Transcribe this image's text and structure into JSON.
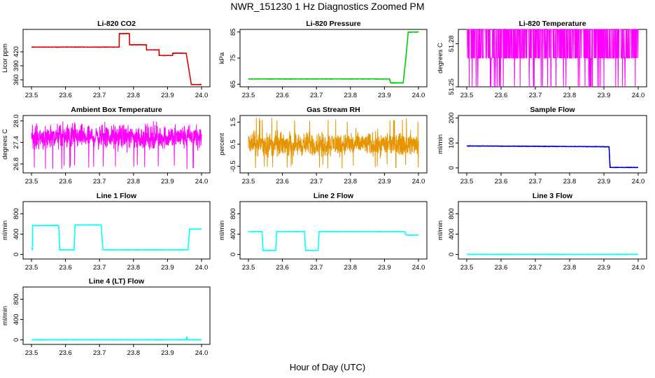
{
  "page": {
    "title": "NWR_151230  1 Hz Diagnostics Zoomed PM",
    "xlabel": "Hour of Day (UTC)"
  },
  "chart_data": [
    {
      "type": "line",
      "title": "Li-820 CO2",
      "ylabel": "Licor ppm",
      "xlim": [
        23.5,
        24.0
      ],
      "ylim": [
        345,
        468
      ],
      "xticks": [
        "23.5",
        "23.6",
        "23.7",
        "23.8",
        "23.9",
        "24.0"
      ],
      "yticks": [
        "360",
        "390",
        "420"
      ],
      "ytick_values": [
        360,
        390,
        420
      ],
      "color": "#dd0000",
      "mode": "steps",
      "x": [
        23.5,
        23.758,
        23.758,
        23.788,
        23.788,
        23.838,
        23.838,
        23.875,
        23.875,
        23.915,
        23.915,
        23.955,
        23.97,
        24.0
      ],
      "y": [
        430,
        430,
        459,
        459,
        435,
        435,
        424,
        424,
        412,
        412,
        417,
        417,
        350,
        350
      ]
    },
    {
      "type": "line",
      "title": "Li-820 Pressure",
      "ylabel": "kPa",
      "xlim": [
        23.5,
        24.0
      ],
      "ylim": [
        64,
        86
      ],
      "xticks": [
        "23.5",
        "23.6",
        "23.7",
        "23.8",
        "23.9",
        "24.0"
      ],
      "yticks": [
        "65",
        "75",
        "85"
      ],
      "ytick_values": [
        65,
        75,
        85
      ],
      "color": "#00cc00",
      "mode": "steps",
      "x": [
        23.5,
        23.915,
        23.918,
        23.955,
        23.963,
        23.97,
        23.97,
        24.0
      ],
      "y": [
        67,
        67,
        65.5,
        65.5,
        75,
        85,
        85,
        85
      ]
    },
    {
      "type": "line",
      "title": "Li-820 Temperature",
      "ylabel": "degrees C",
      "xlim": [
        23.5,
        24.0
      ],
      "ylim": [
        51.25,
        51.29
      ],
      "xticks": [
        "23.5",
        "23.6",
        "23.7",
        "23.8",
        "23.9",
        "24.0"
      ],
      "yticks": [
        "51.25",
        "51.28"
      ],
      "ytick_values": [
        51.25,
        51.28
      ],
      "color": "#ff00ff",
      "mode": "flicker",
      "low": 51.25,
      "high": 51.29,
      "base": 51.27
    },
    {
      "type": "line",
      "title": "Ambient Box Temperature",
      "ylabel": "degrees C",
      "xlim": [
        23.5,
        24.0
      ],
      "ylim": [
        26.55,
        28.15
      ],
      "xticks": [
        "23.5",
        "23.6",
        "23.7",
        "23.8",
        "23.9",
        "24.0"
      ],
      "yticks": [
        "26.8",
        "27.4",
        "28.0"
      ],
      "ytick_values": [
        26.8,
        27.4,
        28.0
      ],
      "color": "#ff00ff",
      "mode": "noise",
      "mean": 27.55,
      "spread": 0.25,
      "spike_lo": 26.65,
      "spike_hi": 28.0
    },
    {
      "type": "line",
      "title": "Gas Stream RH",
      "ylabel": "percent",
      "xlim": [
        23.5,
        24.0
      ],
      "ylim": [
        -0.8,
        1.8
      ],
      "xticks": [
        "23.5",
        "23.6",
        "23.7",
        "23.8",
        "23.9",
        "24.0"
      ],
      "yticks": [
        "-0.5",
        "0.5",
        "1.5"
      ],
      "ytick_values": [
        -0.5,
        0.5,
        1.5
      ],
      "color": "#e69500",
      "mode": "noise",
      "mean": 0.5,
      "spread": 0.4,
      "spike_lo": -0.6,
      "spike_hi": 1.7
    },
    {
      "type": "line",
      "title": "Sample Flow",
      "ylabel": "ml/min",
      "xlim": [
        23.5,
        24.0
      ],
      "ylim": [
        -20,
        210
      ],
      "xticks": [
        "23.5",
        "23.6",
        "23.7",
        "23.8",
        "23.9",
        "24.0"
      ],
      "yticks": [
        "0",
        "100",
        "200"
      ],
      "ytick_values": [
        0,
        100,
        200
      ],
      "color": "#0000cc",
      "mode": "steps",
      "x": [
        23.5,
        23.91,
        23.915,
        23.918,
        24.0
      ],
      "y": [
        88,
        85,
        85,
        2,
        2
      ]
    },
    {
      "type": "line",
      "title": "Line 1 Flow",
      "ylabel": "ml/min",
      "xlim": [
        23.5,
        24.0
      ],
      "ylim": [
        -90,
        1040
      ],
      "xticks": [
        "23.5",
        "23.6",
        "23.7",
        "23.8",
        "23.9",
        "24.0"
      ],
      "yticks": [
        "0",
        "400",
        "800"
      ],
      "ytick_values": [
        0,
        400,
        800
      ],
      "color": "#00ffff",
      "mode": "steps",
      "x": [
        23.5,
        23.503,
        23.503,
        23.58,
        23.583,
        23.625,
        23.628,
        23.705,
        23.71,
        23.96,
        23.965,
        24.0
      ],
      "y": [
        100,
        100,
        570,
        570,
        90,
        90,
        580,
        580,
        90,
        90,
        500,
        500
      ]
    },
    {
      "type": "line",
      "title": "Line 2 Flow",
      "ylabel": "ml/min",
      "xlim": [
        23.5,
        24.0
      ],
      "ylim": [
        -90,
        1040
      ],
      "xticks": [
        "23.5",
        "23.6",
        "23.7",
        "23.8",
        "23.9",
        "24.0"
      ],
      "yticks": [
        "0",
        "400",
        "800"
      ],
      "ytick_values": [
        0,
        400,
        800
      ],
      "color": "#00ffff",
      "mode": "steps",
      "x": [
        23.5,
        23.54,
        23.543,
        23.58,
        23.583,
        23.665,
        23.668,
        23.705,
        23.708,
        23.96,
        23.963,
        24.0
      ],
      "y": [
        450,
        450,
        80,
        80,
        450,
        450,
        80,
        80,
        450,
        450,
        380,
        380
      ]
    },
    {
      "type": "line",
      "title": "Line 3 Flow",
      "ylabel": "ml/min",
      "xlim": [
        23.5,
        24.0
      ],
      "ylim": [
        -90,
        1040
      ],
      "xticks": [
        "23.5",
        "23.6",
        "23.7",
        "23.8",
        "23.9",
        "24.0"
      ],
      "yticks": [
        "0",
        "400",
        "800"
      ],
      "ytick_values": [
        0,
        400,
        800
      ],
      "color": "#00ffff",
      "mode": "steps",
      "x": [
        23.5,
        24.0
      ],
      "y": [
        0,
        0
      ]
    },
    {
      "type": "line",
      "title": "Line 4 (LT) Flow",
      "ylabel": "ml/min",
      "xlim": [
        23.5,
        24.0
      ],
      "ylim": [
        -90,
        1040
      ],
      "xticks": [
        "23.5",
        "23.6",
        "23.7",
        "23.8",
        "23.9",
        "24.0"
      ],
      "yticks": [
        "0",
        "400",
        "800"
      ],
      "ytick_values": [
        0,
        400,
        800
      ],
      "color": "#00ffff",
      "mode": "steps",
      "x": [
        23.5,
        23.955,
        23.957,
        23.959,
        24.0
      ],
      "y": [
        0,
        0,
        60,
        0,
        0
      ]
    }
  ]
}
